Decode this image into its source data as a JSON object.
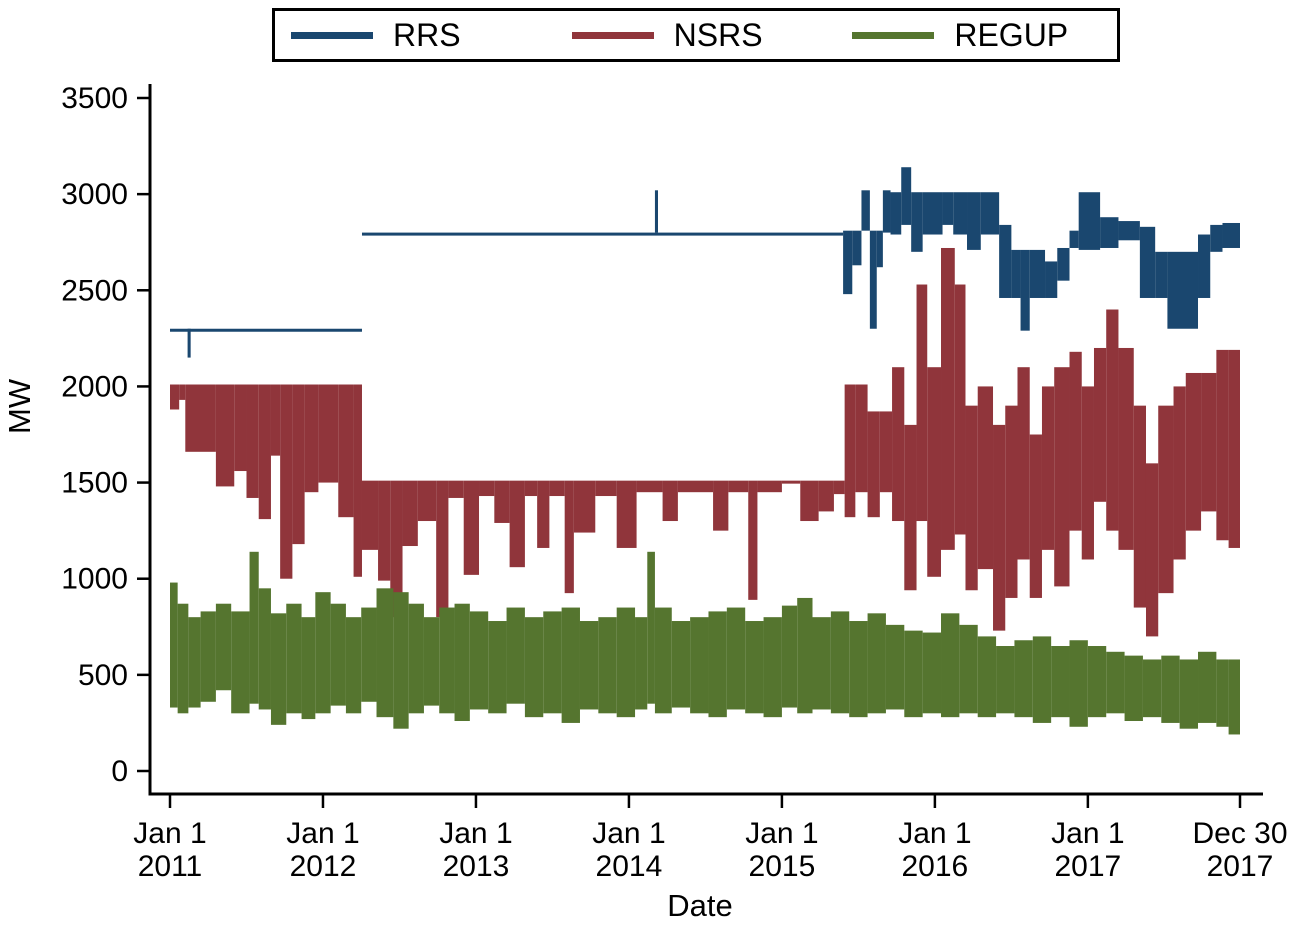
{
  "figure": {
    "background": "#ffffff",
    "axis_color": "#000000"
  },
  "chart_data": {
    "type": "line",
    "title": "",
    "xlabel": "Date",
    "ylabel": "MW",
    "ylim": [
      0,
      3500
    ],
    "yticks": [
      0,
      500,
      1000,
      1500,
      2000,
      2500,
      3000,
      3500
    ],
    "x_range_years": [
      2011.0,
      2017.9945
    ],
    "xticks": [
      {
        "t": 2011.0,
        "line1": "Jan 1",
        "line2": "2011"
      },
      {
        "t": 2012.0,
        "line1": "Jan 1",
        "line2": "2012"
      },
      {
        "t": 2013.0,
        "line1": "Jan 1",
        "line2": "2013"
      },
      {
        "t": 2014.0,
        "line1": "Jan 1",
        "line2": "2014"
      },
      {
        "t": 2015.0,
        "line1": "Jan 1",
        "line2": "2015"
      },
      {
        "t": 2016.0,
        "line1": "Jan 1",
        "line2": "2016"
      },
      {
        "t": 2017.0,
        "line1": "Jan 1",
        "line2": "2017"
      },
      {
        "t": 2017.9945,
        "line1": "Dec 30",
        "line2": "2017"
      }
    ],
    "grid": false,
    "legend_position": "top-center",
    "note": "High-frequency MW time series rendered as min-max envelope bands [t_start_year, t_end_year, low_MW, high_MW]",
    "legend_items": [
      {
        "label": "RRS",
        "color": "#1a476f"
      },
      {
        "label": "NSRS",
        "color": "#90353b"
      },
      {
        "label": "REGUP",
        "color": "#55752f"
      }
    ],
    "series": [
      {
        "name": "RRS",
        "color": "#1a476f",
        "bands": [
          [
            2011.0,
            2012.255,
            2300,
            2300
          ],
          [
            2011.115,
            2011.135,
            2150,
            2300
          ],
          [
            2012.255,
            2015.4,
            2800,
            2800
          ],
          [
            2014.17,
            2014.19,
            2800,
            3020
          ],
          [
            2015.4,
            2015.46,
            2480,
            2810
          ],
          [
            2015.46,
            2015.52,
            2630,
            2810
          ],
          [
            2015.52,
            2015.575,
            2810,
            3020
          ],
          [
            2015.575,
            2015.62,
            2300,
            2810
          ],
          [
            2015.62,
            2015.66,
            2620,
            2810
          ],
          [
            2015.66,
            2015.71,
            2800,
            3020
          ],
          [
            2015.71,
            2015.78,
            2790,
            3010
          ],
          [
            2015.78,
            2015.845,
            2840,
            3140
          ],
          [
            2015.845,
            2015.92,
            2700,
            3010
          ],
          [
            2015.92,
            2016.05,
            2790,
            3010
          ],
          [
            2016.05,
            2016.12,
            2840,
            3010
          ],
          [
            2016.12,
            2016.21,
            2790,
            3010
          ],
          [
            2016.21,
            2016.3,
            2710,
            3010
          ],
          [
            2016.3,
            2016.42,
            2790,
            3010
          ],
          [
            2016.42,
            2016.5,
            2460,
            2840
          ],
          [
            2016.5,
            2016.56,
            2460,
            2710
          ],
          [
            2016.56,
            2016.62,
            2290,
            2710
          ],
          [
            2016.62,
            2016.72,
            2460,
            2710
          ],
          [
            2016.72,
            2016.8,
            2460,
            2650
          ],
          [
            2016.8,
            2016.88,
            2550,
            2720
          ],
          [
            2016.88,
            2016.94,
            2720,
            2810
          ],
          [
            2016.94,
            2017.08,
            2710,
            3010
          ],
          [
            2017.08,
            2017.2,
            2720,
            2880
          ],
          [
            2017.2,
            2017.34,
            2760,
            2860
          ],
          [
            2017.34,
            2017.44,
            2460,
            2830
          ],
          [
            2017.44,
            2017.52,
            2460,
            2700
          ],
          [
            2017.52,
            2017.72,
            2300,
            2700
          ],
          [
            2017.72,
            2017.8,
            2460,
            2790
          ],
          [
            2017.8,
            2017.88,
            2700,
            2840
          ],
          [
            2017.88,
            2017.9945,
            2720,
            2850
          ]
        ]
      },
      {
        "name": "NSRS",
        "color": "#90353b",
        "bands": [
          [
            2011.0,
            2011.06,
            1880,
            2010
          ],
          [
            2011.06,
            2011.1,
            1930,
            2010
          ],
          [
            2011.1,
            2011.3,
            1660,
            2010
          ],
          [
            2011.3,
            2011.42,
            1480,
            2010
          ],
          [
            2011.42,
            2011.5,
            1560,
            2010
          ],
          [
            2011.5,
            2011.58,
            1420,
            2010
          ],
          [
            2011.58,
            2011.66,
            1310,
            2010
          ],
          [
            2011.66,
            2011.72,
            1640,
            2010
          ],
          [
            2011.72,
            2011.8,
            1000,
            2010
          ],
          [
            2011.8,
            2011.88,
            1180,
            2010
          ],
          [
            2011.88,
            2011.97,
            1450,
            2010
          ],
          [
            2011.97,
            2012.1,
            1500,
            2010
          ],
          [
            2012.1,
            2012.2,
            1320,
            2010
          ],
          [
            2012.2,
            2012.255,
            1010,
            2010
          ],
          [
            2012.255,
            2012.36,
            1150,
            1510
          ],
          [
            2012.36,
            2012.44,
            990,
            1510
          ],
          [
            2012.44,
            2012.52,
            800,
            1510
          ],
          [
            2012.52,
            2012.62,
            1170,
            1510
          ],
          [
            2012.62,
            2012.74,
            1300,
            1510
          ],
          [
            2012.74,
            2012.82,
            800,
            1510
          ],
          [
            2012.82,
            2012.92,
            1420,
            1510
          ],
          [
            2012.92,
            2013.02,
            1020,
            1510
          ],
          [
            2013.02,
            2013.12,
            1430,
            1510
          ],
          [
            2013.12,
            2013.22,
            1290,
            1510
          ],
          [
            2013.22,
            2013.32,
            1060,
            1510
          ],
          [
            2013.32,
            2013.4,
            1430,
            1510
          ],
          [
            2013.4,
            2013.48,
            1160,
            1510
          ],
          [
            2013.48,
            2013.58,
            1430,
            1510
          ],
          [
            2013.58,
            2013.64,
            925,
            1510
          ],
          [
            2013.64,
            2013.78,
            1240,
            1510
          ],
          [
            2013.78,
            2013.92,
            1430,
            1510
          ],
          [
            2013.92,
            2014.05,
            1160,
            1510
          ],
          [
            2014.05,
            2014.22,
            1450,
            1510
          ],
          [
            2014.22,
            2014.32,
            1300,
            1510
          ],
          [
            2014.32,
            2014.55,
            1450,
            1510
          ],
          [
            2014.55,
            2014.65,
            1250,
            1510
          ],
          [
            2014.65,
            2014.78,
            1450,
            1510
          ],
          [
            2014.78,
            2014.84,
            890,
            1510
          ],
          [
            2014.84,
            2015.0,
            1450,
            1510
          ],
          [
            2015.0,
            2015.12,
            1500,
            1510
          ],
          [
            2015.12,
            2015.24,
            1300,
            1510
          ],
          [
            2015.24,
            2015.34,
            1350,
            1510
          ],
          [
            2015.34,
            2015.41,
            1440,
            1510
          ],
          [
            2015.41,
            2015.48,
            1320,
            2010
          ],
          [
            2015.48,
            2015.56,
            1450,
            2010
          ],
          [
            2015.56,
            2015.64,
            1320,
            1870
          ],
          [
            2015.64,
            2015.72,
            1450,
            1870
          ],
          [
            2015.72,
            2015.8,
            1300,
            2100
          ],
          [
            2015.8,
            2015.88,
            940,
            1800
          ],
          [
            2015.88,
            2015.95,
            1300,
            2530
          ],
          [
            2015.95,
            2016.04,
            1010,
            2100
          ],
          [
            2016.04,
            2016.13,
            1150,
            2720
          ],
          [
            2016.13,
            2016.2,
            1230,
            2530
          ],
          [
            2016.2,
            2016.28,
            940,
            1900
          ],
          [
            2016.28,
            2016.38,
            1050,
            2000
          ],
          [
            2016.38,
            2016.46,
            730,
            1800
          ],
          [
            2016.46,
            2016.54,
            900,
            1900
          ],
          [
            2016.54,
            2016.62,
            1100,
            2100
          ],
          [
            2016.62,
            2016.7,
            900,
            1750
          ],
          [
            2016.7,
            2016.78,
            1150,
            2000
          ],
          [
            2016.78,
            2016.88,
            960,
            2100
          ],
          [
            2016.88,
            2016.96,
            1250,
            2180
          ],
          [
            2016.96,
            2017.04,
            1100,
            2000
          ],
          [
            2017.04,
            2017.12,
            1400,
            2200
          ],
          [
            2017.12,
            2017.2,
            1250,
            2400
          ],
          [
            2017.2,
            2017.3,
            1150,
            2200
          ],
          [
            2017.3,
            2017.38,
            850,
            1900
          ],
          [
            2017.38,
            2017.46,
            700,
            1600
          ],
          [
            2017.46,
            2017.56,
            925,
            1900
          ],
          [
            2017.56,
            2017.64,
            1100,
            2000
          ],
          [
            2017.64,
            2017.74,
            1250,
            2070
          ],
          [
            2017.74,
            2017.84,
            1350,
            2070
          ],
          [
            2017.84,
            2017.92,
            1200,
            2190
          ],
          [
            2017.92,
            2017.9945,
            1160,
            2190
          ]
        ]
      },
      {
        "name": "REGUP",
        "color": "#55752f",
        "bands": [
          [
            2011.0,
            2011.05,
            330,
            980
          ],
          [
            2011.05,
            2011.12,
            300,
            870
          ],
          [
            2011.12,
            2011.2,
            330,
            800
          ],
          [
            2011.2,
            2011.3,
            360,
            830
          ],
          [
            2011.3,
            2011.4,
            420,
            870
          ],
          [
            2011.4,
            2011.52,
            300,
            830
          ],
          [
            2011.52,
            2011.58,
            350,
            1140
          ],
          [
            2011.58,
            2011.66,
            320,
            950
          ],
          [
            2011.66,
            2011.76,
            240,
            820
          ],
          [
            2011.76,
            2011.86,
            300,
            870
          ],
          [
            2011.86,
            2011.95,
            270,
            800
          ],
          [
            2011.95,
            2012.05,
            300,
            930
          ],
          [
            2012.05,
            2012.15,
            340,
            870
          ],
          [
            2012.15,
            2012.25,
            300,
            800
          ],
          [
            2012.25,
            2012.35,
            360,
            850
          ],
          [
            2012.35,
            2012.46,
            280,
            950
          ],
          [
            2012.46,
            2012.56,
            220,
            930
          ],
          [
            2012.56,
            2012.66,
            300,
            870
          ],
          [
            2012.66,
            2012.76,
            340,
            800
          ],
          [
            2012.76,
            2012.86,
            300,
            850
          ],
          [
            2012.86,
            2012.96,
            260,
            870
          ],
          [
            2012.96,
            2013.08,
            320,
            830
          ],
          [
            2013.08,
            2013.2,
            300,
            780
          ],
          [
            2013.2,
            2013.32,
            350,
            850
          ],
          [
            2013.32,
            2013.44,
            280,
            800
          ],
          [
            2013.44,
            2013.56,
            300,
            830
          ],
          [
            2013.56,
            2013.68,
            250,
            850
          ],
          [
            2013.68,
            2013.8,
            320,
            780
          ],
          [
            2013.8,
            2013.92,
            300,
            800
          ],
          [
            2013.92,
            2014.04,
            280,
            850
          ],
          [
            2014.04,
            2014.12,
            320,
            800
          ],
          [
            2014.12,
            2014.17,
            350,
            1140
          ],
          [
            2014.17,
            2014.28,
            300,
            850
          ],
          [
            2014.28,
            2014.4,
            330,
            780
          ],
          [
            2014.4,
            2014.52,
            300,
            800
          ],
          [
            2014.52,
            2014.64,
            280,
            830
          ],
          [
            2014.64,
            2014.76,
            320,
            850
          ],
          [
            2014.76,
            2014.88,
            300,
            780
          ],
          [
            2014.88,
            2015.0,
            280,
            800
          ],
          [
            2015.0,
            2015.1,
            330,
            860
          ],
          [
            2015.1,
            2015.2,
            300,
            900
          ],
          [
            2015.2,
            2015.32,
            320,
            800
          ],
          [
            2015.32,
            2015.44,
            300,
            830
          ],
          [
            2015.44,
            2015.56,
            280,
            780
          ],
          [
            2015.56,
            2015.68,
            300,
            820
          ],
          [
            2015.68,
            2015.8,
            320,
            760
          ],
          [
            2015.8,
            2015.92,
            280,
            730
          ],
          [
            2015.92,
            2016.04,
            300,
            720
          ],
          [
            2016.04,
            2016.16,
            280,
            820
          ],
          [
            2016.16,
            2016.28,
            300,
            760
          ],
          [
            2016.28,
            2016.4,
            280,
            700
          ],
          [
            2016.4,
            2016.52,
            300,
            650
          ],
          [
            2016.52,
            2016.64,
            280,
            680
          ],
          [
            2016.64,
            2016.76,
            250,
            700
          ],
          [
            2016.76,
            2016.88,
            280,
            650
          ],
          [
            2016.88,
            2017.0,
            230,
            680
          ],
          [
            2017.0,
            2017.12,
            280,
            650
          ],
          [
            2017.12,
            2017.24,
            300,
            620
          ],
          [
            2017.24,
            2017.36,
            260,
            600
          ],
          [
            2017.36,
            2017.48,
            280,
            580
          ],
          [
            2017.48,
            2017.6,
            250,
            600
          ],
          [
            2017.6,
            2017.72,
            220,
            580
          ],
          [
            2017.72,
            2017.84,
            250,
            620
          ],
          [
            2017.84,
            2017.92,
            230,
            580
          ],
          [
            2017.92,
            2017.9945,
            190,
            580
          ]
        ]
      }
    ]
  }
}
